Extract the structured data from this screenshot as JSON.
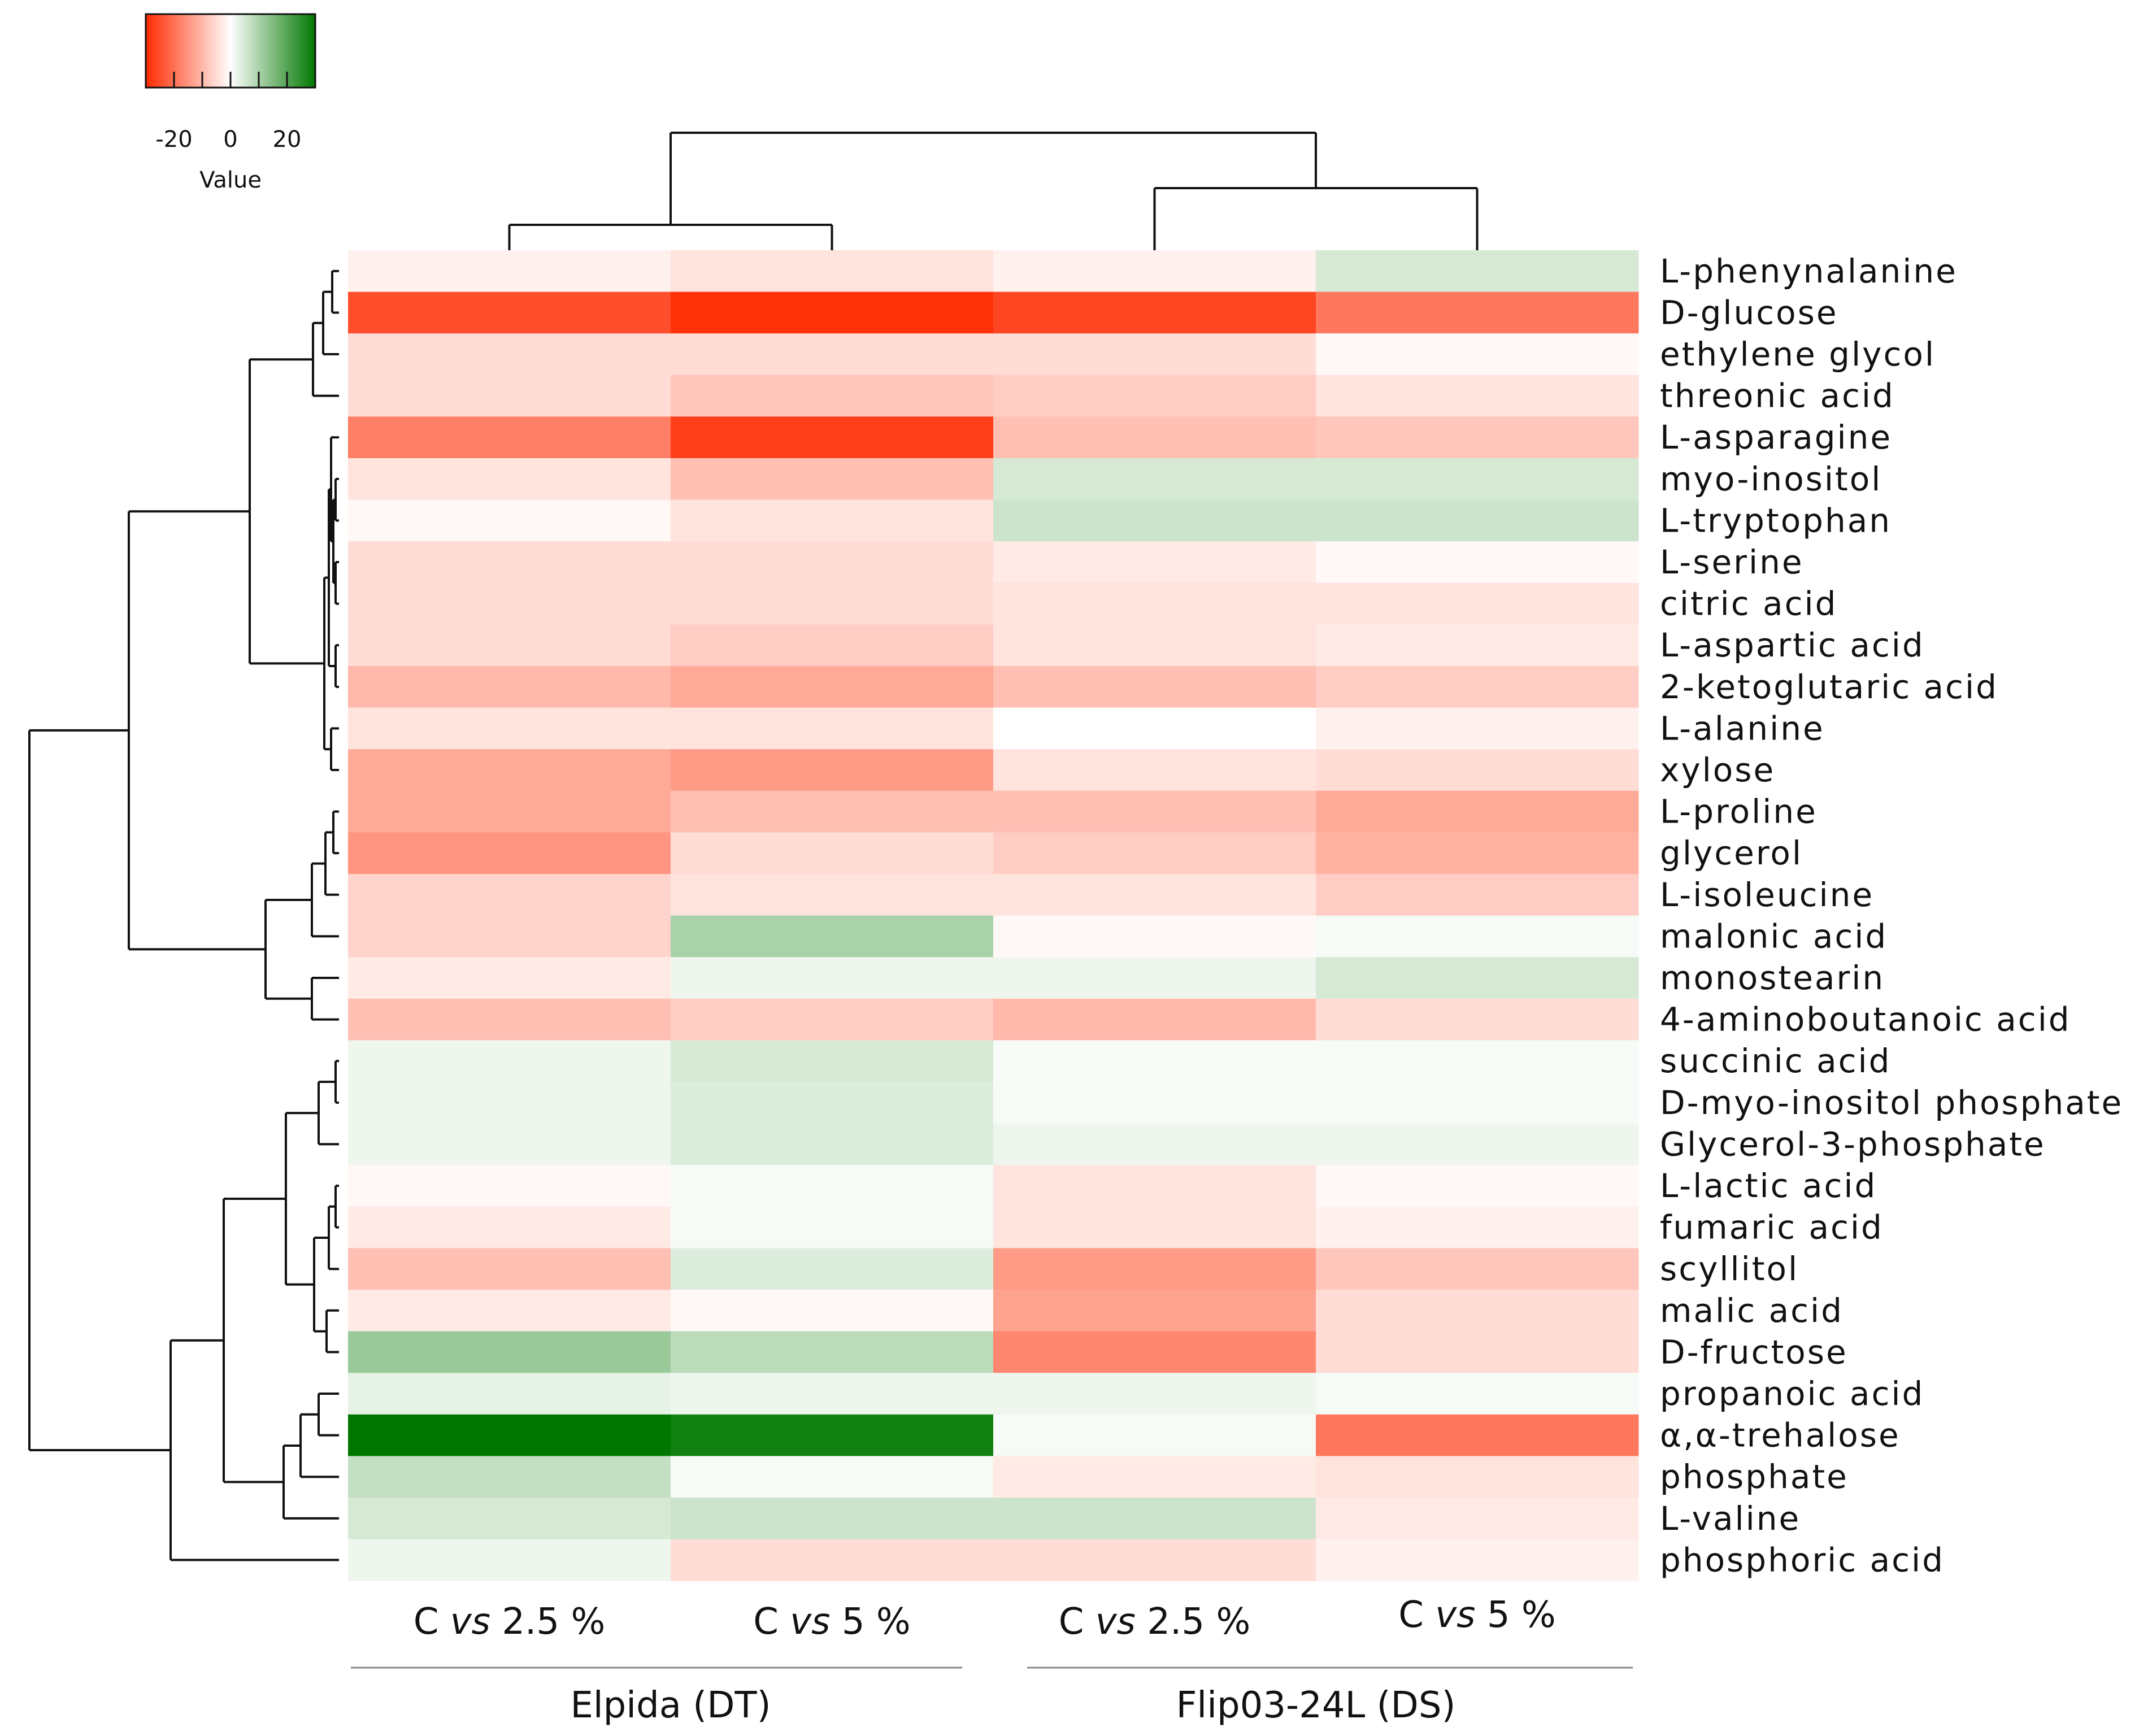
{
  "chart_data": {
    "type": "heatmap",
    "legend": {
      "title": "Value",
      "ticks": [
        -20,
        0,
        20
      ],
      "tick_labels": [
        "-20",
        "0",
        "20"
      ],
      "range": [
        -30,
        30
      ],
      "color_low": "#ff2a00",
      "color_mid": "#ffffff",
      "color_high": "#007800"
    },
    "groups": [
      {
        "label": "Elpida (DT)",
        "columns": [
          0,
          1
        ]
      },
      {
        "label": "Flip03-24L (DS)",
        "columns": [
          2,
          3
        ]
      }
    ],
    "columns": [
      {
        "prefix": "C ",
        "italic": "vs",
        "suffix": " 2.5 %"
      },
      {
        "prefix": "C ",
        "italic": "vs",
        "suffix": " 5 %"
      },
      {
        "prefix": "C ",
        "italic": "vs",
        "suffix": " 2.5 %"
      },
      {
        "prefix": "C ",
        "italic": "vs",
        "suffix": " 5 %"
      }
    ],
    "rows": [
      "L-phenynalanine",
      "D-glucose",
      "ethylene glycol",
      "threonic acid",
      "L-asparagine",
      "myo-inositol",
      "L-tryptophan",
      "L-serine",
      "citric acid",
      "L-aspartic acid",
      "2-ketoglutaric acid",
      "L-alanine",
      "xylose",
      "L-proline",
      "glycerol",
      "L-isoleucine",
      "malonic acid",
      "monostearin",
      "4-aminoboutanoic acid",
      "succinic acid",
      "D-myo-inositol phosphate",
      "Glycerol-3-phosphate",
      "L-lactic acid",
      "fumaric acid",
      "scyllitol",
      "malic acid",
      "D-fructose",
      "propanoic acid",
      "α,α-trehalose",
      "phosphate",
      "L-valine",
      "phosphoric acid"
    ],
    "values": [
      [
        -2,
        -4,
        -2,
        5
      ],
      [
        -25,
        -29,
        -26,
        -19
      ],
      [
        -5,
        -5,
        -5,
        -1
      ],
      [
        -5,
        -8,
        -7,
        -4
      ],
      [
        -18,
        -27,
        -9,
        -8
      ],
      [
        -4,
        -9,
        5,
        5
      ],
      [
        -1,
        -4,
        6,
        6
      ],
      [
        -5,
        -5,
        -3,
        -1
      ],
      [
        -5,
        -5,
        -4,
        -4
      ],
      [
        -5,
        -7,
        -4,
        -3
      ],
      [
        -10,
        -12,
        -9,
        -7
      ],
      [
        -4,
        -4,
        0,
        -2
      ],
      [
        -12,
        -14,
        -4,
        -5
      ],
      [
        -12,
        -9,
        -9,
        -12
      ],
      [
        -15,
        -5,
        -7,
        -11
      ],
      [
        -6,
        -4,
        -4,
        -7
      ],
      [
        -6,
        10,
        -1,
        1
      ],
      [
        -3,
        2,
        2,
        5
      ],
      [
        -9,
        -7,
        -10,
        -5
      ],
      [
        2,
        5,
        1,
        1
      ],
      [
        2,
        4,
        1,
        1
      ],
      [
        2,
        4,
        2,
        2
      ],
      [
        -1,
        1,
        -4,
        -1
      ],
      [
        -3,
        1,
        -4,
        -2
      ],
      [
        -9,
        4,
        -14,
        -8
      ],
      [
        -3,
        -1,
        -13,
        -5
      ],
      [
        12,
        8,
        -17,
        -5
      ],
      [
        3,
        2,
        2,
        1
      ],
      [
        30,
        28,
        1,
        -19
      ],
      [
        7,
        1,
        -3,
        -4
      ],
      [
        5,
        6,
        6,
        -3
      ],
      [
        2,
        -5,
        -5,
        -2
      ]
    ],
    "column_dendrogram": [
      [
        0,
        1
      ],
      [
        2,
        3
      ],
      [
        [
          0,
          1
        ],
        [
          2,
          3
        ]
      ]
    ],
    "xlabel": "",
    "ylabel": ""
  }
}
